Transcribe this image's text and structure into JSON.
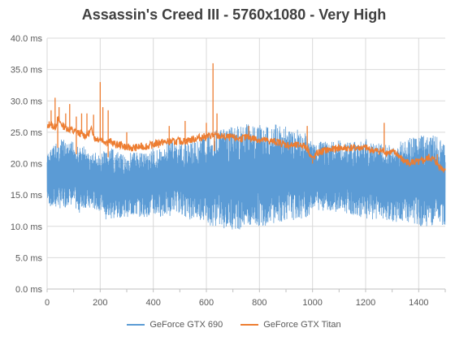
{
  "chart_data": {
    "type": "line",
    "title": "Assassin's Creed III - 5760x1080 - Very High",
    "xlabel": "",
    "ylabel": "",
    "xlim": [
      0,
      1500
    ],
    "ylim": [
      0,
      40
    ],
    "x_ticks": [
      0,
      200,
      400,
      600,
      800,
      1000,
      1200,
      1400
    ],
    "y_ticks": [
      0,
      5,
      10,
      15,
      20,
      25,
      30,
      35,
      40
    ],
    "y_tick_labels": [
      "0.0 ms",
      "5.0 ms",
      "10.0 ms",
      "15.0 ms",
      "20.0 ms",
      "25.0 ms",
      "30.0 ms",
      "35.0 ms",
      "40.0 ms"
    ],
    "grid": true,
    "legend_position": "bottom",
    "series": [
      {
        "name": "GeForce GTX 690",
        "color": "#5B9BD5",
        "x": [
          0,
          20,
          40,
          60,
          80,
          100,
          120,
          140,
          160,
          180,
          200,
          210,
          220,
          240,
          260,
          280,
          300,
          320,
          340,
          360,
          380,
          400,
          420,
          440,
          460,
          480,
          500,
          520,
          540,
          560,
          580,
          600,
          620,
          640,
          660,
          680,
          700,
          720,
          740,
          760,
          780,
          800,
          820,
          840,
          860,
          880,
          900,
          920,
          940,
          960,
          980,
          990,
          1000,
          1020,
          1040,
          1060,
          1080,
          1100,
          1120,
          1140,
          1160,
          1180,
          1200,
          1220,
          1240,
          1260,
          1280,
          1300,
          1320,
          1340,
          1360,
          1380,
          1400,
          1420,
          1440,
          1460,
          1480,
          1500
        ],
        "high": [
          21.5,
          23.0,
          23.5,
          24.0,
          23.0,
          24.0,
          22.5,
          23.0,
          21.5,
          22.0,
          21.0,
          22.0,
          22.0,
          22.5,
          22.0,
          21.5,
          21.5,
          22.0,
          22.0,
          22.0,
          22.0,
          22.5,
          22.5,
          22.0,
          24.5,
          23.5,
          23.0,
          23.5,
          23.5,
          24.0,
          24.5,
          25.0,
          25.5,
          25.5,
          25.5,
          25.5,
          26.0,
          26.0,
          26.5,
          27.0,
          26.5,
          26.5,
          26.0,
          26.0,
          26.5,
          26.0,
          26.0,
          25.5,
          25.5,
          25.0,
          25.0,
          24.5,
          23.0,
          23.5,
          23.5,
          23.5,
          23.5,
          24.0,
          23.5,
          23.5,
          23.5,
          23.5,
          24.0,
          23.5,
          23.5,
          23.5,
          23.0,
          23.0,
          23.0,
          24.0,
          24.0,
          24.5,
          25.0,
          24.5,
          24.5,
          24.5,
          24.0,
          23.5
        ],
        "low": [
          14.0,
          12.5,
          13.0,
          12.5,
          13.5,
          13.0,
          12.0,
          13.0,
          12.5,
          12.5,
          12.5,
          13.0,
          10.5,
          11.0,
          11.0,
          11.5,
          11.5,
          11.5,
          11.5,
          11.5,
          11.5,
          11.5,
          11.5,
          11.5,
          11.5,
          12.5,
          12.0,
          11.5,
          11.0,
          11.0,
          11.0,
          10.5,
          10.0,
          10.0,
          9.5,
          9.5,
          9.5,
          9.5,
          9.5,
          9.5,
          9.5,
          10.0,
          10.0,
          10.5,
          10.5,
          10.5,
          11.0,
          11.0,
          11.0,
          11.0,
          11.5,
          11.5,
          13.0,
          12.5,
          12.5,
          12.5,
          12.5,
          12.0,
          12.0,
          12.0,
          11.5,
          11.5,
          11.0,
          11.0,
          11.0,
          11.0,
          11.0,
          10.5,
          10.5,
          10.5,
          10.5,
          10.0,
          10.0,
          10.0,
          10.0,
          10.0,
          10.0,
          10.0
        ]
      },
      {
        "name": "GeForce GTX Titan",
        "color": "#ED7D31",
        "x": [
          0,
          10,
          20,
          30,
          40,
          50,
          60,
          70,
          80,
          90,
          100,
          110,
          120,
          130,
          140,
          150,
          160,
          170,
          180,
          190,
          200,
          210,
          220,
          230,
          240,
          250,
          260,
          270,
          280,
          290,
          300,
          320,
          340,
          360,
          380,
          400,
          420,
          440,
          460,
          480,
          500,
          520,
          540,
          560,
          580,
          600,
          620,
          640,
          660,
          680,
          700,
          720,
          740,
          760,
          780,
          800,
          820,
          840,
          860,
          880,
          900,
          920,
          940,
          960,
          980,
          1000,
          1020,
          1040,
          1060,
          1080,
          1100,
          1120,
          1140,
          1160,
          1180,
          1200,
          1220,
          1240,
          1260,
          1280,
          1300,
          1320,
          1340,
          1360,
          1380,
          1400,
          1420,
          1440,
          1460,
          1480,
          1500
        ],
        "y": [
          25.5,
          26.5,
          26.0,
          25.8,
          27.0,
          26.5,
          26.0,
          25.8,
          25.5,
          25.5,
          25.0,
          25.2,
          24.8,
          24.8,
          24.5,
          24.5,
          25.0,
          25.5,
          24.0,
          24.0,
          24.0,
          23.8,
          23.5,
          23.5,
          23.5,
          23.2,
          23.0,
          23.0,
          23.0,
          22.8,
          22.5,
          22.5,
          22.6,
          22.7,
          22.8,
          23.0,
          23.4,
          23.4,
          23.5,
          23.5,
          23.6,
          23.6,
          23.8,
          24.0,
          24.2,
          24.3,
          24.5,
          24.4,
          24.3,
          24.2,
          24.1,
          24.0,
          24.1,
          24.2,
          24.0,
          23.8,
          23.7,
          23.6,
          23.5,
          23.3,
          23.0,
          22.9,
          22.9,
          23.0,
          22.5,
          20.7,
          21.7,
          22.0,
          22.2,
          22.3,
          22.5,
          22.4,
          22.5,
          22.5,
          22.5,
          22.5,
          22.2,
          22.0,
          22.0,
          21.8,
          21.8,
          21.5,
          20.5,
          20.2,
          20.3,
          20.2,
          20.5,
          21.0,
          20.5,
          19.5,
          19.0
        ],
        "spikes": [
          {
            "x": 15,
            "y": 28.5
          },
          {
            "x": 30,
            "y": 30.5
          },
          {
            "x": 45,
            "y": 29.0
          },
          {
            "x": 70,
            "y": 28.0
          },
          {
            "x": 85,
            "y": 29.5
          },
          {
            "x": 110,
            "y": 27.5
          },
          {
            "x": 130,
            "y": 28.0
          },
          {
            "x": 150,
            "y": 28.0
          },
          {
            "x": 175,
            "y": 27.8
          },
          {
            "x": 200,
            "y": 33.0
          },
          {
            "x": 210,
            "y": 29.0
          },
          {
            "x": 230,
            "y": 28.5
          },
          {
            "x": 300,
            "y": 25.0
          },
          {
            "x": 460,
            "y": 26.0
          },
          {
            "x": 520,
            "y": 26.8
          },
          {
            "x": 600,
            "y": 26.5
          },
          {
            "x": 625,
            "y": 36.0
          },
          {
            "x": 640,
            "y": 28.0
          },
          {
            "x": 760,
            "y": 26.0
          },
          {
            "x": 980,
            "y": 26.0
          },
          {
            "x": 1270,
            "y": 26.5
          },
          {
            "x": 1470,
            "y": 21.5
          }
        ],
        "dips": [
          {
            "x": 40,
            "y": 22.5
          },
          {
            "x": 110,
            "y": 21.5
          },
          {
            "x": 180,
            "y": 23.5
          },
          {
            "x": 230,
            "y": 21.0
          },
          {
            "x": 420,
            "y": 22.5
          },
          {
            "x": 630,
            "y": 22.0
          },
          {
            "x": 1000,
            "y": 20.0
          },
          {
            "x": 1360,
            "y": 19.8
          }
        ]
      }
    ]
  }
}
